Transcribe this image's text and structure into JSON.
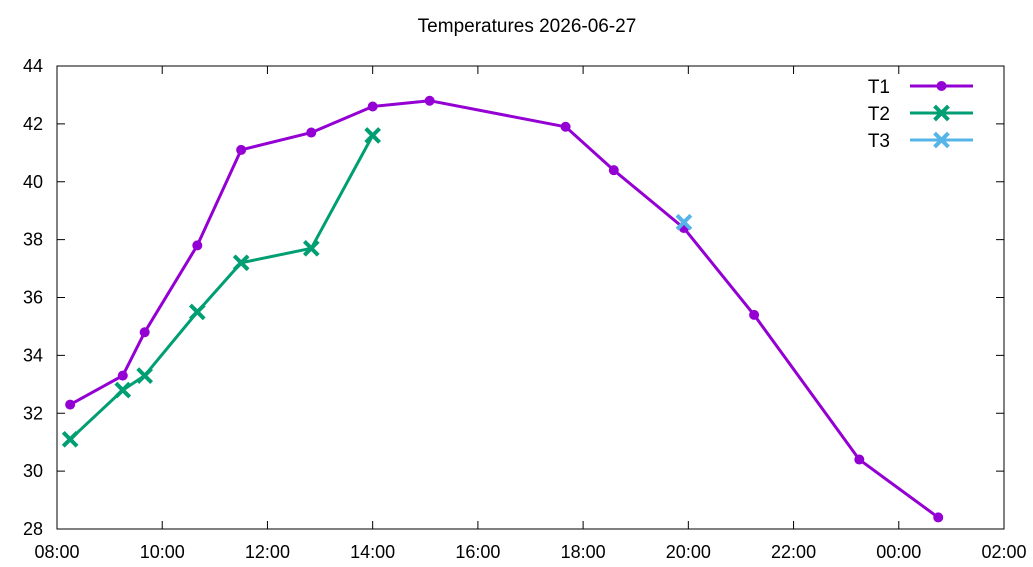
{
  "chart_data": {
    "type": "line",
    "title": "Temperatures 2026-06-27",
    "xlabel": "",
    "ylabel": "",
    "x_axis": {
      "min": "08:00",
      "max": "26:00",
      "ticks": [
        "08:00",
        "10:00",
        "12:00",
        "14:00",
        "16:00",
        "18:00",
        "20:00",
        "22:00",
        "00:00",
        "02:00"
      ]
    },
    "y_axis": {
      "min": 28,
      "max": 44,
      "ticks": [
        28,
        30,
        32,
        34,
        36,
        38,
        40,
        42,
        44
      ]
    },
    "grid": false,
    "legend_position": "top-right",
    "series": [
      {
        "name": "T1",
        "color": "#9400d3",
        "marker": "circle",
        "points": [
          [
            "08:15",
            32.3
          ],
          [
            "09:15",
            33.3
          ],
          [
            "09:40",
            34.8
          ],
          [
            "10:40",
            37.8
          ],
          [
            "11:30",
            41.1
          ],
          [
            "12:50",
            41.7
          ],
          [
            "14:00",
            42.6
          ],
          [
            "15:05",
            42.8
          ],
          [
            "17:40",
            41.9
          ],
          [
            "18:35",
            40.4
          ],
          [
            "19:55",
            38.4
          ],
          [
            "21:15",
            35.4
          ],
          [
            "23:15",
            30.4
          ],
          [
            "24:45",
            28.4
          ]
        ]
      },
      {
        "name": "T2",
        "color": "#009e73",
        "marker": "x",
        "points": [
          [
            "08:15",
            31.1
          ],
          [
            "09:15",
            32.8
          ],
          [
            "09:40",
            33.3
          ],
          [
            "10:40",
            35.5
          ],
          [
            "11:30",
            37.2
          ],
          [
            "12:50",
            37.7
          ],
          [
            "14:00",
            41.6
          ]
        ]
      },
      {
        "name": "T3",
        "color": "#56b4e9",
        "marker": "x",
        "points": [
          [
            "19:55",
            38.6
          ]
        ]
      }
    ]
  }
}
